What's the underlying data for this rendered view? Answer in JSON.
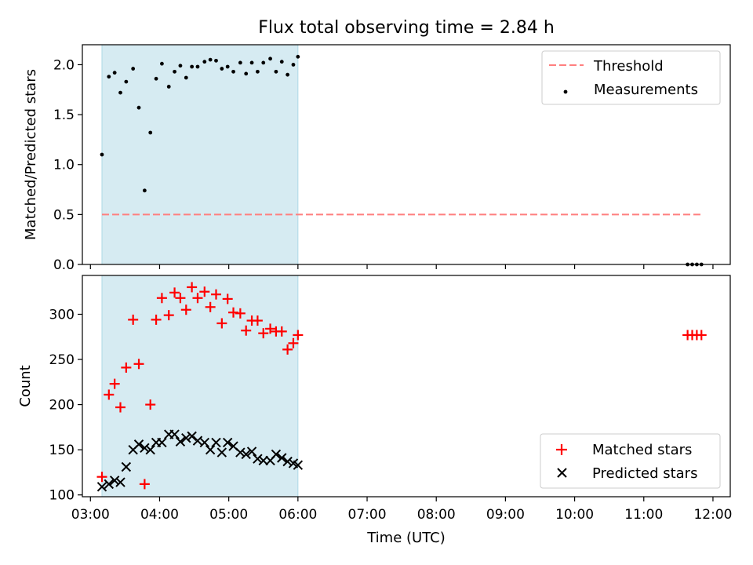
{
  "title": "Flux total observing time = 2.84 h",
  "colors": {
    "shade": "#add8e6",
    "threshold": "#ff7f7f",
    "measurement": "#000000",
    "matched": "#ff0000",
    "predicted": "#000000"
  },
  "chart_data": [
    {
      "type": "scatter",
      "panel": "top",
      "xlabel": "",
      "ylabel": "Matched/Predicted stars",
      "xlim": [
        "02:53",
        "12:15"
      ],
      "ylim": [
        0,
        2.2
      ],
      "yticks": [
        0.0,
        0.5,
        1.0,
        1.5,
        2.0
      ],
      "ytick_labels": [
        "0.0",
        "0.5",
        "1.0",
        "1.5",
        "2.0"
      ],
      "xticks": [
        "03:00",
        "04:00",
        "05:00",
        "06:00",
        "07:00",
        "08:00",
        "09:00",
        "10:00",
        "11:00",
        "12:00"
      ],
      "shaded_span": [
        "03:10",
        "06:00"
      ],
      "legend_position": "upper right",
      "threshold": {
        "name": "Threshold",
        "y": 0.5,
        "x": [
          "03:10",
          "11:50"
        ]
      },
      "series": [
        {
          "name": "Measurements",
          "x": [
            "03:10",
            "03:16",
            "03:21",
            "03:26",
            "03:31",
            "03:37",
            "03:42",
            "03:47",
            "03:52",
            "03:57",
            "04:02",
            "04:08",
            "04:13",
            "04:18",
            "04:23",
            "04:28",
            "04:33",
            "04:39",
            "04:44",
            "04:49",
            "04:54",
            "04:59",
            "05:04",
            "05:10",
            "05:15",
            "05:20",
            "05:25",
            "05:30",
            "05:36",
            "05:41",
            "05:46",
            "05:51",
            "05:56",
            "06:00",
            "11:38",
            "11:42",
            "11:46",
            "11:50"
          ],
          "y": [
            1.1,
            1.88,
            1.92,
            1.72,
            1.83,
            1.96,
            1.57,
            0.74,
            1.32,
            1.86,
            2.01,
            1.78,
            1.93,
            1.99,
            1.87,
            1.98,
            1.98,
            2.03,
            2.05,
            2.04,
            1.96,
            1.98,
            1.93,
            2.02,
            1.91,
            2.02,
            1.93,
            2.02,
            2.06,
            1.93,
            2.03,
            1.9,
            2.0,
            2.08,
            0.0,
            0.0,
            0.0,
            0.0
          ]
        }
      ]
    },
    {
      "type": "scatter",
      "panel": "bottom",
      "xlabel": "Time (UTC)",
      "ylabel": "Count",
      "xlim": [
        "02:53",
        "12:15"
      ],
      "ylim": [
        98,
        343
      ],
      "yticks": [
        100,
        150,
        200,
        250,
        300
      ],
      "ytick_labels": [
        "100",
        "150",
        "200",
        "250",
        "300"
      ],
      "xticks": [
        "03:00",
        "04:00",
        "05:00",
        "06:00",
        "07:00",
        "08:00",
        "09:00",
        "10:00",
        "11:00",
        "12:00"
      ],
      "xtick_labels": [
        "03:00",
        "04:00",
        "05:00",
        "06:00",
        "07:00",
        "08:00",
        "09:00",
        "10:00",
        "11:00",
        "12:00"
      ],
      "shaded_span": [
        "03:10",
        "06:00"
      ],
      "legend_position": "lower right",
      "series": [
        {
          "name": "Matched stars",
          "marker": "plus",
          "x": [
            "03:10",
            "03:16",
            "03:21",
            "03:26",
            "03:31",
            "03:37",
            "03:42",
            "03:47",
            "03:52",
            "03:57",
            "04:02",
            "04:08",
            "04:13",
            "04:18",
            "04:23",
            "04:28",
            "04:33",
            "04:39",
            "04:44",
            "04:49",
            "04:54",
            "04:59",
            "05:04",
            "05:10",
            "05:15",
            "05:20",
            "05:25",
            "05:30",
            "05:36",
            "05:41",
            "05:46",
            "05:51",
            "05:56",
            "06:00",
            "11:38",
            "11:42",
            "11:46",
            "11:50"
          ],
          "y": [
            120,
            211,
            223,
            197,
            241,
            294,
            245,
            112,
            200,
            294,
            318,
            299,
            324,
            318,
            305,
            330,
            318,
            325,
            308,
            322,
            290,
            317,
            302,
            301,
            282,
            293,
            293,
            279,
            284,
            281,
            281,
            261,
            268,
            277,
            277,
            277,
            277,
            277
          ]
        },
        {
          "name": "Predicted stars",
          "marker": "x",
          "x": [
            "03:10",
            "03:16",
            "03:21",
            "03:26",
            "03:31",
            "03:37",
            "03:42",
            "03:47",
            "03:52",
            "03:57",
            "04:02",
            "04:08",
            "04:13",
            "04:18",
            "04:23",
            "04:28",
            "04:33",
            "04:39",
            "04:44",
            "04:49",
            "04:54",
            "04:59",
            "05:04",
            "05:10",
            "05:15",
            "05:20",
            "05:25",
            "05:30",
            "05:36",
            "05:41",
            "05:46",
            "05:51",
            "05:56",
            "06:00"
          ],
          "y": [
            109,
            112,
            116,
            114,
            131,
            150,
            156,
            152,
            150,
            158,
            158,
            167,
            167,
            159,
            163,
            165,
            160,
            158,
            150,
            158,
            147,
            158,
            154,
            147,
            145,
            148,
            140,
            138,
            138,
            145,
            141,
            137,
            135,
            133
          ]
        }
      ]
    }
  ]
}
